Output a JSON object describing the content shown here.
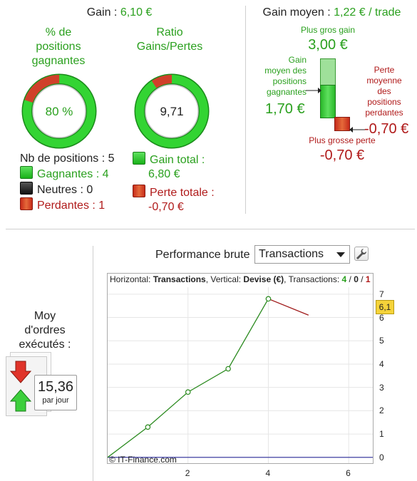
{
  "top_left": {
    "gain_label": "Gain : ",
    "gain_value": "6,10 €",
    "pct_title_1": "% de",
    "pct_title_2": "positions",
    "pct_title_3": "gagnantes",
    "pct_value": "80 %",
    "pct_fraction": 0.8,
    "ratio_title_1": "Ratio",
    "ratio_title_2": "Gains/Pertes",
    "ratio_value": "9,71",
    "ratio_fraction": 0.907,
    "nb_positions": "Nb de positions : 5",
    "gagnantes": "Gagnantes : 4",
    "neutres": "Neutres : 0",
    "perdantes": "Perdantes : 1",
    "gain_total_label": "Gain total :",
    "gain_total_value": "6,80 €",
    "perte_totale_label": "Perte totale :",
    "perte_totale_value": "-0,70 €"
  },
  "top_right": {
    "gain_moyen_label": "Gain moyen : ",
    "gain_moyen_value": "1,22 € / trade",
    "plus_gros_gain_label": "Plus gros gain",
    "plus_gros_gain_value": "3,00 €",
    "gain_moyen_pos_1": "Gain",
    "gain_moyen_pos_2": "moyen des",
    "gain_moyen_pos_3": "positions",
    "gain_moyen_pos_4": "gagnantes",
    "gain_moyen_pos_value": "1,70 €",
    "perte_moy_1": "Perte",
    "perte_moy_2": "moyenne",
    "perte_moy_3": "des",
    "perte_moy_4": "positions",
    "perte_moy_5": "perdantes",
    "perte_moy_value": "-0,70 €",
    "plus_grosse_perte_label": "Plus grosse perte",
    "plus_grosse_perte_value": "-0,70 €"
  },
  "orders": {
    "title_1": "Moy",
    "title_2": "d'ordres",
    "title_3": "exécutés :",
    "value": "15,36",
    "unit": "par jour"
  },
  "performance": {
    "label": "Performance brute",
    "select_value": "Transactions",
    "header_prefix": "Horizontal: ",
    "header_h": "Transactions",
    "header_mid": ", Vertical: ",
    "header_v": "Devise (€)",
    "header_tx": ", Transactions: ",
    "tx_win": "4",
    "tx_sep1": " / ",
    "tx_neutral": "0",
    "tx_sep2": " / ",
    "tx_loss": "1",
    "credit": "© IT-Finance.com",
    "current_value_badge": "6,1"
  },
  "chart_data": {
    "type": "line",
    "title": "Performance brute",
    "xlabel": "Transactions",
    "ylabel": "Devise (€)",
    "x_ticks": [
      2,
      4,
      6
    ],
    "y_ticks": [
      0,
      1,
      2,
      3,
      4,
      5,
      6,
      7
    ],
    "xlim": [
      0,
      6.6
    ],
    "ylim": [
      -0.25,
      7.3
    ],
    "series": [
      {
        "name": "Gain",
        "color": "#2a8a1e",
        "x": [
          0,
          1,
          2,
          3,
          4
        ],
        "y": [
          0,
          1.3,
          2.8,
          3.8,
          6.8
        ]
      },
      {
        "name": "Perte",
        "color": "#a01c1c",
        "x": [
          4,
          5
        ],
        "y": [
          6.8,
          6.1
        ]
      }
    ],
    "markers_x": [
      1,
      2,
      3,
      4
    ],
    "markers_y": [
      1.3,
      2.8,
      3.8,
      6.8
    ],
    "zero_line_color": "#2b2b9a",
    "grid": true
  },
  "colors": {
    "accent_green": "#2aa01e",
    "accent_red": "#b01a1a"
  }
}
